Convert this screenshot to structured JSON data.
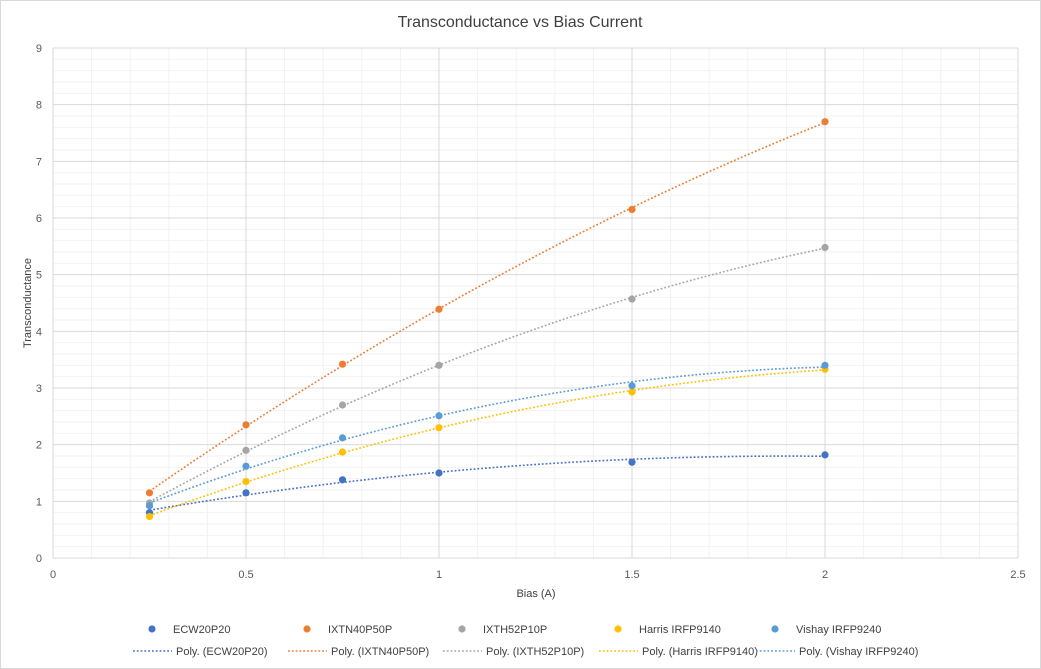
{
  "chart_data": {
    "type": "scatter",
    "title": "Transconductance vs Bias Current",
    "xlabel": "Bias (A)",
    "ylabel": "Transconductance",
    "xlim": [
      0,
      2.5
    ],
    "ylim": [
      0,
      9
    ],
    "x_ticks": [
      0,
      0.5,
      1,
      1.5,
      2,
      2.5
    ],
    "y_ticks": [
      0,
      1,
      2,
      3,
      4,
      5,
      6,
      7,
      8,
      9
    ],
    "x_tick_labels": [
      "0",
      "0.5",
      "1",
      "1.5",
      "2",
      "2.5"
    ],
    "y_tick_labels": [
      "0",
      "1",
      "2",
      "3",
      "4",
      "5",
      "6",
      "7",
      "8",
      "9"
    ],
    "grid": true,
    "minor_grid": true,
    "legend_position": "bottom",
    "trendline": "polynomial",
    "series": [
      {
        "name": "ECW20P20",
        "trend_name": "Poly. (ECW20P20)",
        "color": "#4472C4",
        "x": [
          0.25,
          0.5,
          0.75,
          1,
          1.5,
          2
        ],
        "y": [
          0.8,
          1.15,
          1.38,
          1.5,
          1.69,
          1.82
        ]
      },
      {
        "name": "IXTN40P50P",
        "trend_name": "Poly. (IXTN40P50P)",
        "color": "#ED7D31",
        "x": [
          0.25,
          0.5,
          0.75,
          1,
          1.5,
          2
        ],
        "y": [
          1.15,
          2.35,
          3.42,
          4.39,
          6.15,
          7.7
        ]
      },
      {
        "name": "IXTH52P10P",
        "trend_name": "Poly. (IXTH52P10P)",
        "color": "#A5A5A5",
        "x": [
          0.25,
          0.5,
          0.75,
          1,
          1.5,
          2
        ],
        "y": [
          0.97,
          1.9,
          2.7,
          3.4,
          4.57,
          5.48
        ]
      },
      {
        "name": "Harris IRFP9140",
        "trend_name": "Poly. (Harris IRFP9140)",
        "color": "#FFC000",
        "x": [
          0.25,
          0.5,
          0.75,
          1,
          1.5,
          2
        ],
        "y": [
          0.73,
          1.35,
          1.87,
          2.3,
          2.93,
          3.33
        ]
      },
      {
        "name": "Vishay IRFP9240",
        "trend_name": "Poly. (Vishay IRFP9240)",
        "color": "#5B9BD5",
        "x": [
          0.25,
          0.5,
          0.75,
          1,
          1.5,
          2
        ],
        "y": [
          0.92,
          1.62,
          2.12,
          2.51,
          3.04,
          3.4
        ]
      }
    ]
  }
}
